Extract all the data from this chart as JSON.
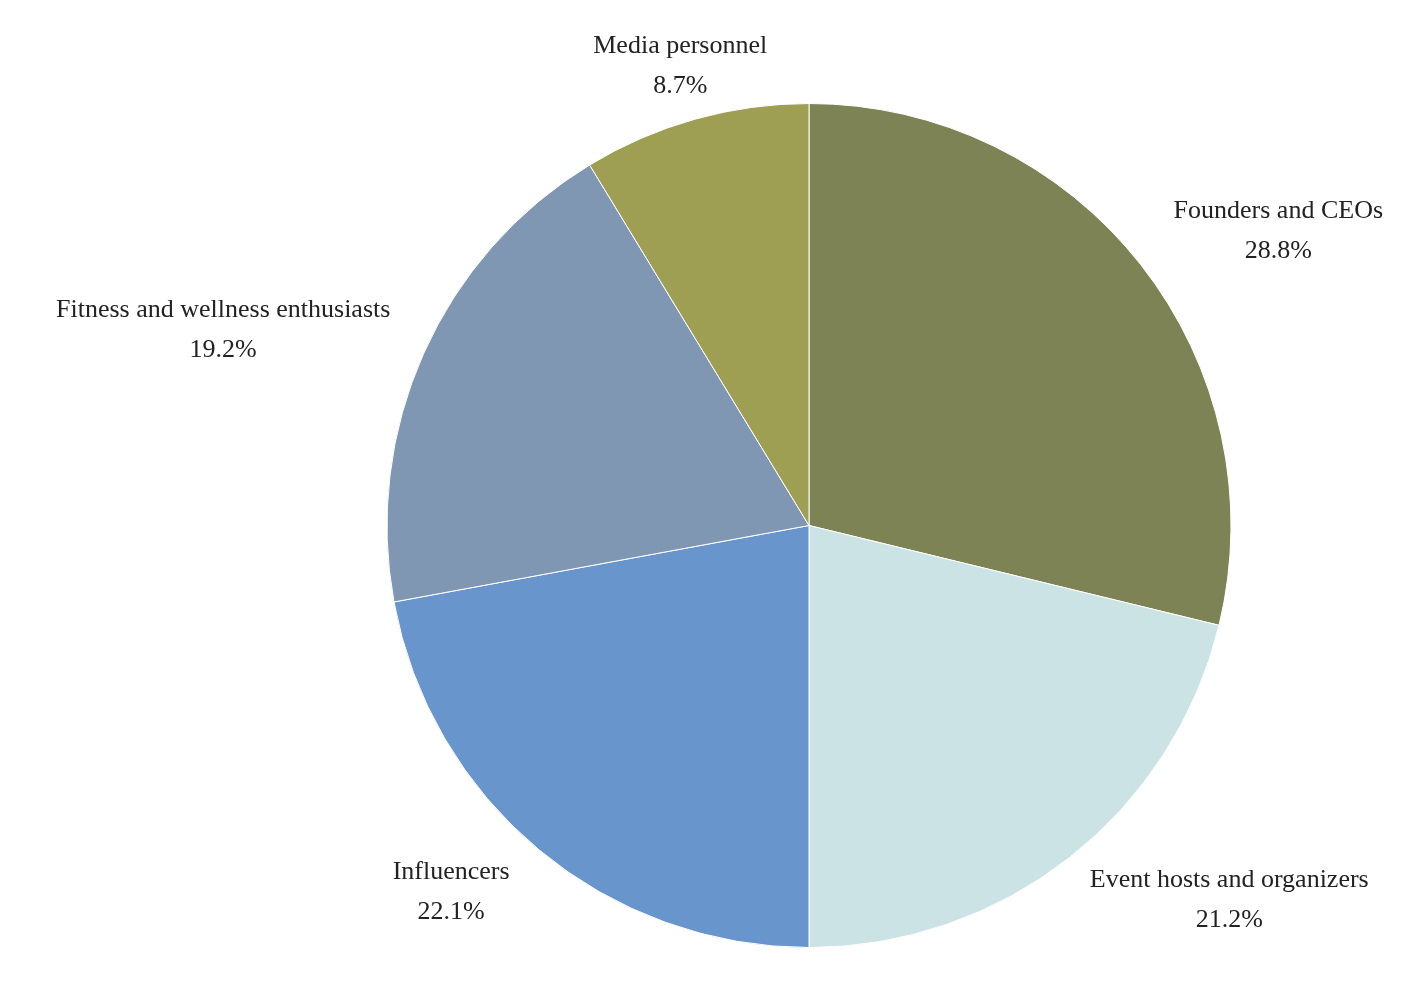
{
  "chart_data": {
    "type": "pie",
    "categories": [
      "Founders and CEOs",
      "Event hosts and organizers",
      "Influencers",
      "Fitness and wellness enthusiasts",
      "Media personnel"
    ],
    "values": [
      28.8,
      21.2,
      22.1,
      19.2,
      8.7
    ],
    "colors": [
      "#7d8354",
      "#cbe3e4",
      "#6895cb",
      "#7f97b2",
      "#9e9f53"
    ],
    "value_labels": [
      "28.8%",
      "21.2%",
      "22.1%",
      "19.2%",
      "8.7%"
    ],
    "legend": false
  }
}
